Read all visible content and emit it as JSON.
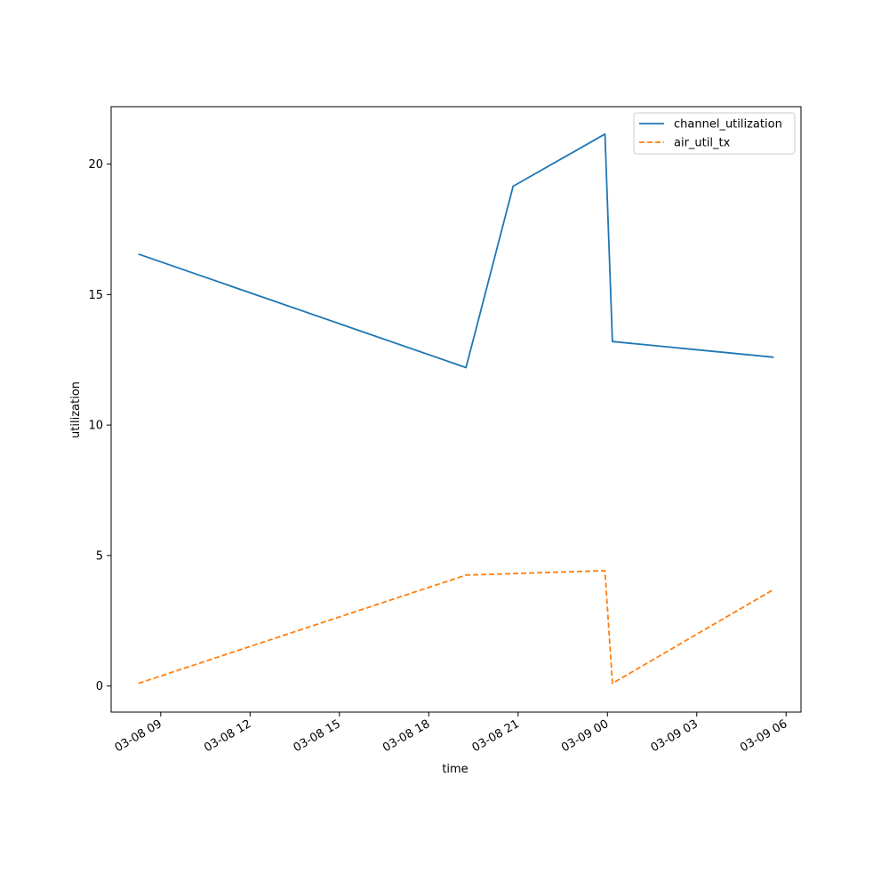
{
  "chart_data": {
    "type": "line",
    "xlabel": "time",
    "ylabel": "utilization",
    "x_axis_kind": "datetime",
    "xlim": [
      "2024-03-08 07:20",
      "2024-03-09 06:30"
    ],
    "ylim": [
      -1.0,
      22.2
    ],
    "grid": false,
    "legend_position": "upper right",
    "x_ticks": [
      {
        "t": "2024-03-08 09:00",
        "label": "03-08 09"
      },
      {
        "t": "2024-03-08 12:00",
        "label": "03-08 12"
      },
      {
        "t": "2024-03-08 15:00",
        "label": "03-08 15"
      },
      {
        "t": "2024-03-08 18:00",
        "label": "03-08 18"
      },
      {
        "t": "2024-03-08 21:00",
        "label": "03-08 21"
      },
      {
        "t": "2024-03-09 00:00",
        "label": "03-09 00"
      },
      {
        "t": "2024-03-09 03:00",
        "label": "03-09 03"
      },
      {
        "t": "2024-03-09 06:00",
        "label": "03-09 06"
      }
    ],
    "y_ticks": [
      {
        "v": 0,
        "label": "0"
      },
      {
        "v": 5,
        "label": "5"
      },
      {
        "v": 10,
        "label": "10"
      },
      {
        "v": 15,
        "label": "15"
      },
      {
        "v": 20,
        "label": "20"
      }
    ],
    "series": [
      {
        "name": "channel_utilization",
        "color": "#1f77b4",
        "style": "solid",
        "points": [
          {
            "x": "2024-03-08 08:15",
            "y": 16.55
          },
          {
            "x": "2024-03-08 19:15",
            "y": 12.2
          },
          {
            "x": "2024-03-08 20:50",
            "y": 19.15
          },
          {
            "x": "2024-03-08 23:55",
            "y": 21.15
          },
          {
            "x": "2024-03-09 00:10",
            "y": 13.2
          },
          {
            "x": "2024-03-09 05:35",
            "y": 12.6
          }
        ]
      },
      {
        "name": "air_util_tx",
        "color": "#ff7f0e",
        "style": "dashed",
        "points": [
          {
            "x": "2024-03-08 08:15",
            "y": 0.1
          },
          {
            "x": "2024-03-08 19:15",
            "y": 4.25
          },
          {
            "x": "2024-03-08 23:55",
            "y": 4.42
          },
          {
            "x": "2024-03-09 00:10",
            "y": 0.1
          },
          {
            "x": "2024-03-09 05:35",
            "y": 3.7
          }
        ]
      }
    ]
  }
}
